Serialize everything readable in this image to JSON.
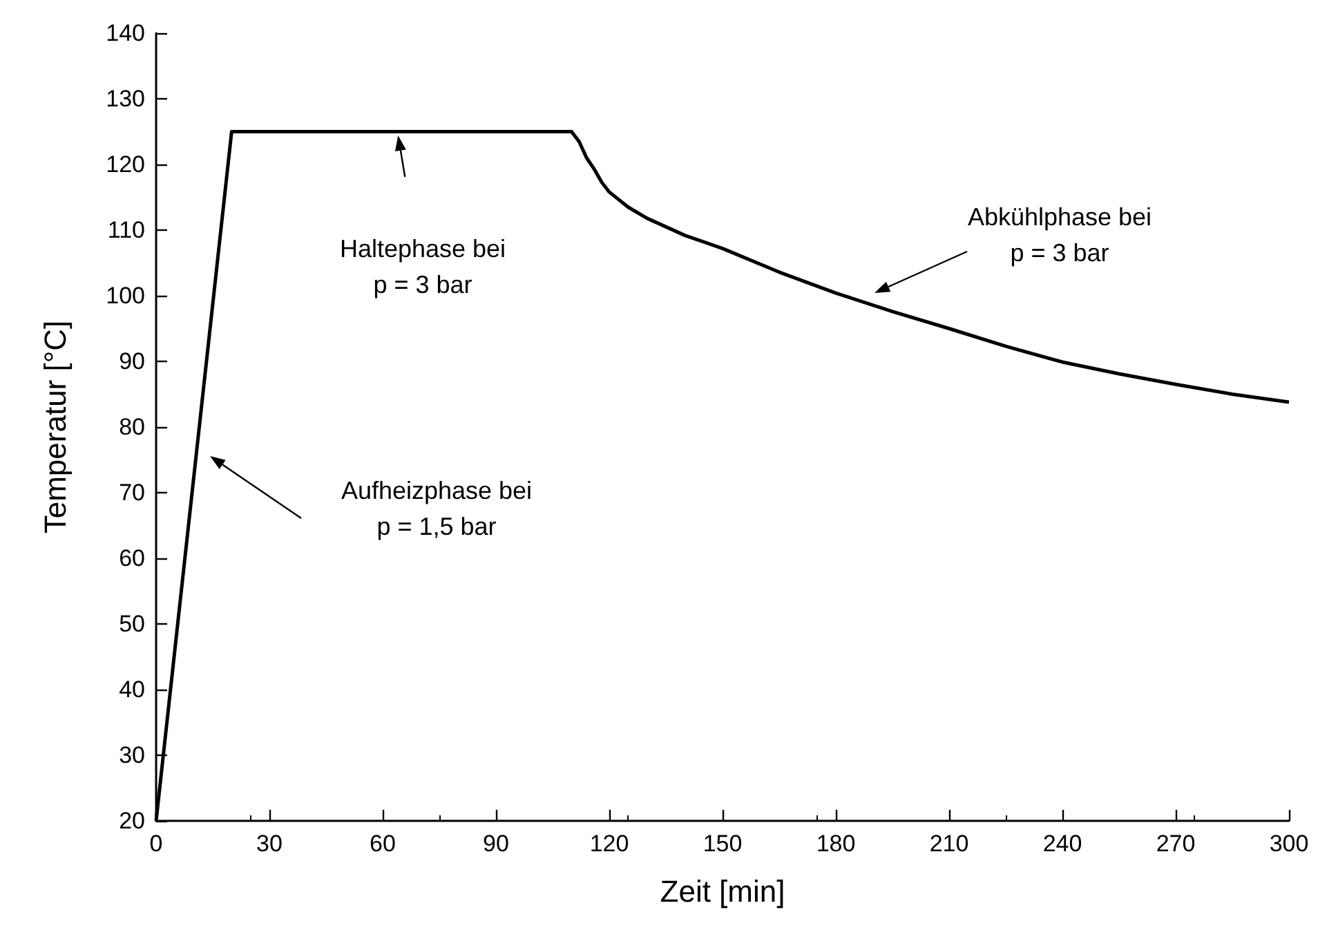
{
  "chart_data": {
    "type": "line",
    "xlabel": "Zeit [min]",
    "ylabel": "Temperatur [°C]",
    "x": [
      0,
      20,
      110,
      112,
      114,
      116,
      118,
      120,
      125,
      130,
      140,
      150,
      165,
      180,
      195,
      210,
      225,
      240,
      255,
      270,
      285,
      300
    ],
    "series": [
      {
        "color": "#000000",
        "values": [
          20,
          125,
          125,
          123.5,
          121,
          119.3,
          117.3,
          115.8,
          113.5,
          111.8,
          109.2,
          107.2,
          103.6,
          100.4,
          97.6,
          95,
          92.3,
          89.9,
          88.1,
          86.5,
          85,
          83.8
        ]
      }
    ],
    "xlim": [
      0,
      300
    ],
    "xticks": [
      0,
      30,
      60,
      90,
      120,
      150,
      180,
      210,
      240,
      270,
      300
    ],
    "ylim": [
      20,
      140
    ],
    "yticks": [
      20,
      30,
      40,
      50,
      60,
      70,
      80,
      90,
      100,
      110,
      120,
      130,
      140
    ],
    "grid": false,
    "marker": "none",
    "line_style": "solid",
    "annotations": [
      "Aufheizphase bei\np = 1,5 bar",
      "Haltephase bei\np = 3 bar",
      "Abkühlphase bei\np = 3 bar"
    ]
  }
}
